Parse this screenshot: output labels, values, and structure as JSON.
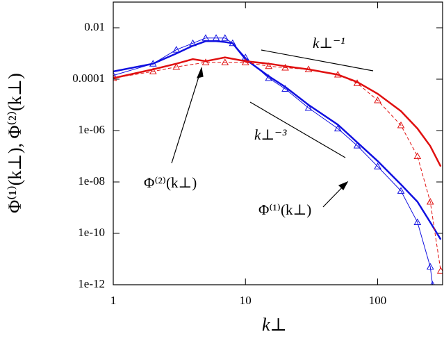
{
  "chart_data": {
    "type": "line",
    "x_label": "k⊥",
    "y_label": "Φ⁽¹⁾(k⊥), Φ⁽²⁾(k⊥)",
    "xlog": true,
    "ylog": true,
    "xlim": [
      1,
      310
    ],
    "ylim": [
      1e-12,
      0.1
    ],
    "xticks": [
      1,
      10,
      100
    ],
    "yticks": [
      0.01,
      0.0001,
      {
        "value": 1e-06,
        "label": "1e-06"
      },
      {
        "value": 1e-08,
        "label": "1e-08"
      },
      {
        "value": 1e-10,
        "label": "1e-10"
      },
      {
        "value": 1e-12,
        "label": "1e-12"
      }
    ],
    "annotations": [
      "k⊥⁻¹",
      "k⊥⁻³",
      "Φ⁽²⁾(k⊥)",
      "Φ⁽¹⁾(k⊥)"
    ],
    "series": [
      {
        "color": "#1010e0",
        "width": 2.5,
        "dash": false,
        "marker": "none",
        "x": [
          1,
          2,
          3,
          4,
          5,
          6,
          7,
          8,
          10,
          15,
          20,
          30,
          50,
          70,
          100,
          150,
          200,
          250,
          300
        ],
        "values": [
          0.0002,
          0.0004,
          0.001,
          0.002,
          0.003,
          0.003,
          0.0028,
          0.0025,
          0.0006,
          0.00013,
          5e-05,
          1e-05,
          1.7e-06,
          3.5e-07,
          6.5e-08,
          8e-09,
          1.7e-09,
          2.7e-10,
          5.8e-11
        ]
      },
      {
        "color": "#1010e0",
        "width": 1,
        "dash": false,
        "marker": "triangle",
        "x": [
          1,
          2,
          3,
          4,
          5,
          6,
          7,
          8,
          10,
          15,
          20,
          30,
          50,
          70,
          100,
          150,
          200,
          250,
          260
        ],
        "values": [
          0.00014,
          0.0004,
          0.0014,
          0.0025,
          0.004,
          0.004,
          0.004,
          0.0025,
          0.0007,
          0.00011,
          4.2e-05,
          7.6e-06,
          1.2e-06,
          2.6e-07,
          4e-08,
          4.5e-09,
          2.7e-10,
          5e-12,
          1e-12
        ]
      },
      {
        "color": "#e01010",
        "width": 2.5,
        "dash": false,
        "marker": "none",
        "x": [
          1,
          2,
          3,
          4,
          5,
          6,
          7,
          10,
          15,
          20,
          30,
          50,
          70,
          100,
          150,
          200,
          250,
          300
        ],
        "values": [
          0.00011,
          0.00024,
          0.0004,
          0.0006,
          0.0005,
          0.0006,
          0.0007,
          0.0005,
          0.0004,
          0.00032,
          0.00024,
          0.00015,
          7.8e-05,
          2.7e-05,
          5.7e-06,
          1.2e-06,
          2.5e-07,
          4e-08
        ]
      },
      {
        "color": "#e01010",
        "width": 1,
        "dash": true,
        "marker": "triangle",
        "x": [
          1,
          2,
          3,
          5,
          7,
          10,
          15,
          20,
          30,
          50,
          70,
          100,
          150,
          200,
          250,
          300
        ],
        "values": [
          0.00011,
          0.0002,
          0.0003,
          0.00045,
          0.00045,
          0.00045,
          0.00032,
          0.00028,
          0.00024,
          0.00015,
          7e-05,
          1.5e-05,
          1.6e-06,
          1e-07,
          1.7e-09,
          3.5e-12
        ]
      }
    ]
  }
}
